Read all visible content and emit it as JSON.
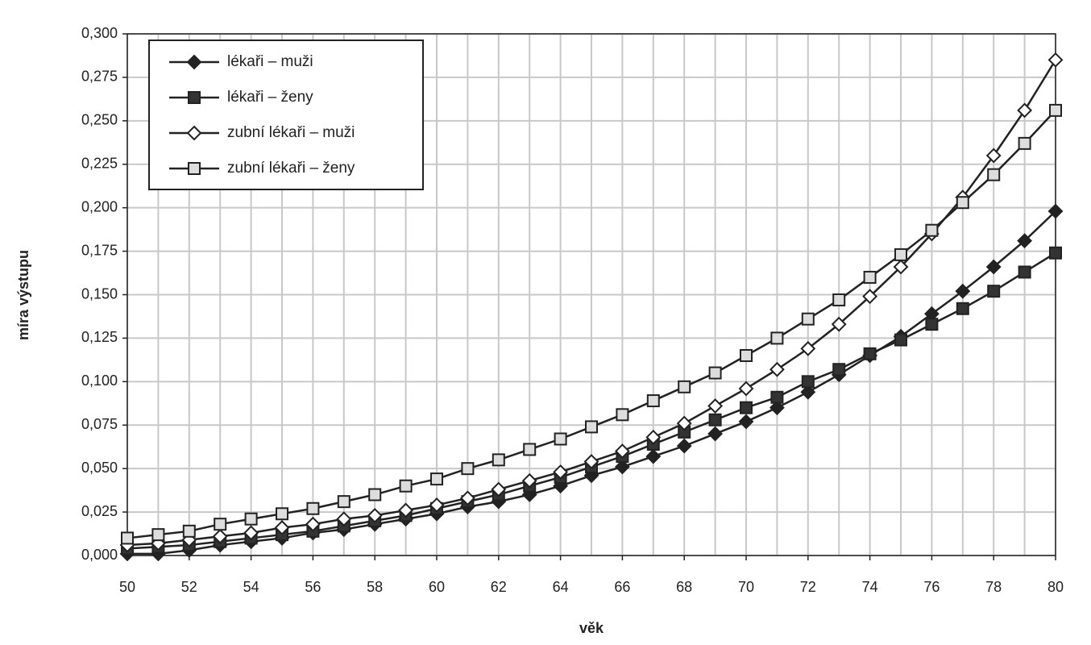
{
  "chart_data": {
    "type": "line",
    "x_label": "věk",
    "y_label": "míra výstupu",
    "x": [
      50,
      51,
      52,
      53,
      54,
      55,
      56,
      57,
      58,
      59,
      60,
      61,
      62,
      63,
      64,
      65,
      66,
      67,
      68,
      69,
      70,
      71,
      72,
      73,
      74,
      75,
      76,
      77,
      78,
      79,
      80
    ],
    "xlim": [
      50,
      80
    ],
    "xticks": [
      50,
      52,
      54,
      56,
      58,
      60,
      62,
      64,
      66,
      68,
      70,
      72,
      74,
      76,
      78,
      80
    ],
    "ylim": [
      0,
      0.3
    ],
    "yticks": [
      {
        "value": 0,
        "label": "0,000"
      },
      {
        "value": 0.025,
        "label": "0,025"
      },
      {
        "value": 0.05,
        "label": "0,050"
      },
      {
        "value": 0.075,
        "label": "0,075"
      },
      {
        "value": 0.1,
        "label": "0,100"
      },
      {
        "value": 0.125,
        "label": "0,125"
      },
      {
        "value": 0.15,
        "label": "0,150"
      },
      {
        "value": 0.175,
        "label": "0,175"
      },
      {
        "value": 0.2,
        "label": "0,200"
      },
      {
        "value": 0.225,
        "label": "0,225"
      },
      {
        "value": 0.25,
        "label": "0,250"
      },
      {
        "value": 0.275,
        "label": "0,275"
      },
      {
        "value": 0.3,
        "label": "0,300"
      }
    ],
    "grid": true,
    "legend": "upper left",
    "series": [
      {
        "name": "lékaři – muži",
        "color": "#222222",
        "marker": "diamond",
        "marker_fill": "#222222",
        "values": [
          0.001,
          0.001,
          0.003,
          0.006,
          0.008,
          0.01,
          0.013,
          0.015,
          0.018,
          0.021,
          0.024,
          0.028,
          0.031,
          0.035,
          0.04,
          0.046,
          0.051,
          0.057,
          0.063,
          0.07,
          0.077,
          0.085,
          0.094,
          0.104,
          0.115,
          0.126,
          0.139,
          0.152,
          0.166,
          0.181,
          0.198
        ]
      },
      {
        "name": "lékaři – ženy",
        "color": "#222222",
        "marker": "square",
        "marker_fill": "#333333",
        "values": [
          0.004,
          0.005,
          0.006,
          0.008,
          0.01,
          0.012,
          0.014,
          0.017,
          0.02,
          0.023,
          0.027,
          0.031,
          0.035,
          0.04,
          0.045,
          0.051,
          0.057,
          0.064,
          0.071,
          0.078,
          0.085,
          0.091,
          0.1,
          0.107,
          0.116,
          0.124,
          0.133,
          0.142,
          0.152,
          0.163,
          0.174
        ]
      },
      {
        "name": "zubní lékaři – muži",
        "color": "#222222",
        "marker": "diamond",
        "marker_fill": "#ffffff",
        "values": [
          0.006,
          0.007,
          0.009,
          0.011,
          0.013,
          0.016,
          0.018,
          0.021,
          0.023,
          0.026,
          0.029,
          0.033,
          0.038,
          0.043,
          0.048,
          0.054,
          0.06,
          0.068,
          0.076,
          0.086,
          0.096,
          0.107,
          0.119,
          0.133,
          0.149,
          0.166,
          0.185,
          0.206,
          0.23,
          0.256,
          0.285
        ]
      },
      {
        "name": "zubní lékaři – ženy",
        "color": "#222222",
        "marker": "square",
        "marker_fill": "#dddddd",
        "values": [
          0.01,
          0.012,
          0.014,
          0.018,
          0.021,
          0.024,
          0.027,
          0.031,
          0.035,
          0.04,
          0.044,
          0.05,
          0.055,
          0.061,
          0.067,
          0.074,
          0.081,
          0.089,
          0.097,
          0.105,
          0.115,
          0.125,
          0.136,
          0.147,
          0.16,
          0.173,
          0.187,
          0.203,
          0.219,
          0.237,
          0.256
        ]
      }
    ]
  }
}
